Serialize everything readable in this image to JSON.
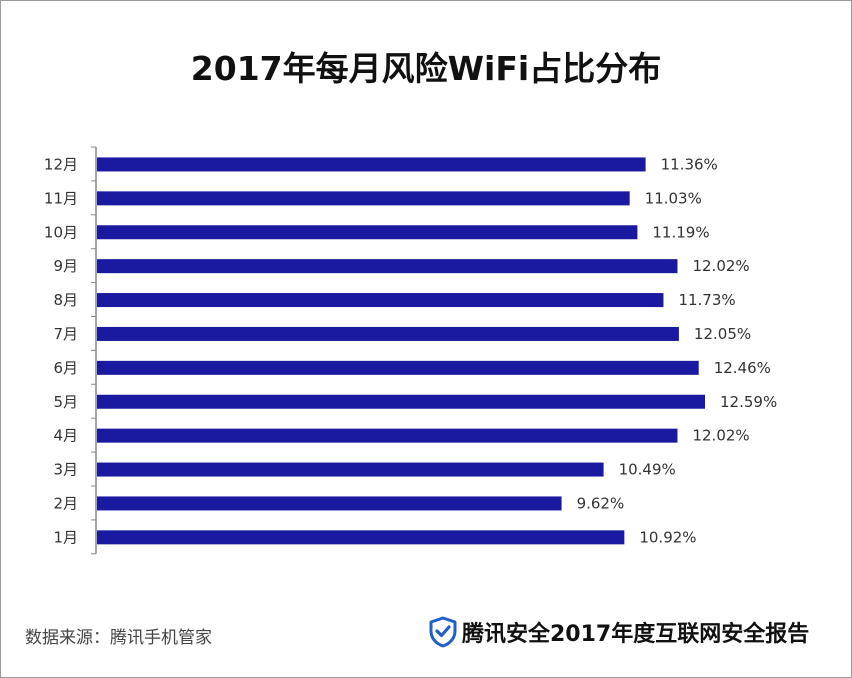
{
  "title": "2017年每月风险WiFi占比分布",
  "source": "数据来源：腾讯手机管家",
  "brand": {
    "text": "腾讯安全2017年度互联网安全报告",
    "icon": "shield-check-icon",
    "icon_color": "#1f5fc8"
  },
  "colors": {
    "bar": "#1a1aa0",
    "axis": "#888888",
    "text": "#333333"
  },
  "chart_data": {
    "type": "bar",
    "orientation": "horizontal",
    "title": "2017年每月风险WiFi占比分布",
    "categories": [
      "12月",
      "11月",
      "10月",
      "9月",
      "8月",
      "7月",
      "6月",
      "5月",
      "4月",
      "3月",
      "2月",
      "1月"
    ],
    "values": [
      11.36,
      11.03,
      11.19,
      12.02,
      11.73,
      12.05,
      12.46,
      12.59,
      12.02,
      10.49,
      9.62,
      10.92
    ],
    "value_labels": [
      "11.36%",
      "11.03%",
      "11.19%",
      "12.02%",
      "11.73%",
      "12.05%",
      "12.46%",
      "12.59%",
      "12.02%",
      "10.49%",
      "9.62%",
      "10.92%"
    ],
    "unit": "%",
    "xlim": [
      0,
      12.59
    ],
    "grid": false,
    "legend": "none"
  }
}
